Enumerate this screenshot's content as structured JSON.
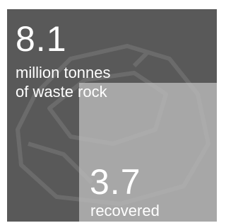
{
  "total": {
    "value": "8.1",
    "label_lines": [
      "million tonnes",
      "of waste rock"
    ]
  },
  "recovered": {
    "value": "3.7",
    "label": "recovered"
  }
}
